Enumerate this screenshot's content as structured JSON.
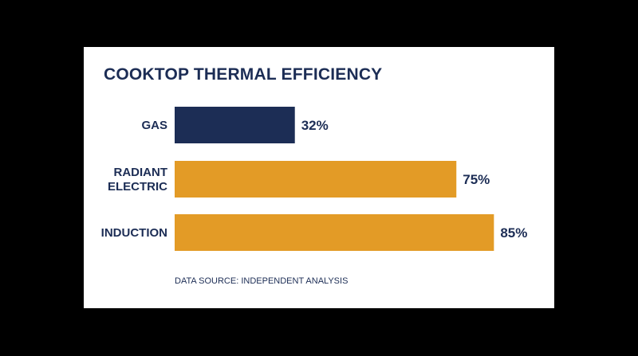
{
  "colors": {
    "background": "#000000",
    "card": "#ffffff",
    "text": "#1c2d55",
    "gas_bar": "#1c2d55",
    "electric_bar": "#e39b26"
  },
  "chart_data": {
    "type": "bar",
    "orientation": "horizontal",
    "title": "COOKTOP THERMAL EFFICIENCY",
    "categories": [
      [
        "GAS"
      ],
      [
        "RADIANT",
        "ELECTRIC"
      ],
      [
        "INDUCTION"
      ]
    ],
    "values": [
      32,
      75,
      85
    ],
    "data_labels": [
      "32%",
      "75%",
      "85%"
    ],
    "bar_colors": [
      "#1c2d55",
      "#e39b26",
      "#e39b26"
    ],
    "unit": "%",
    "xlim": [
      0,
      100
    ],
    "grid": false,
    "legend": false,
    "source": "DATA SOURCE: INDEPENDENT ANALYSIS"
  }
}
